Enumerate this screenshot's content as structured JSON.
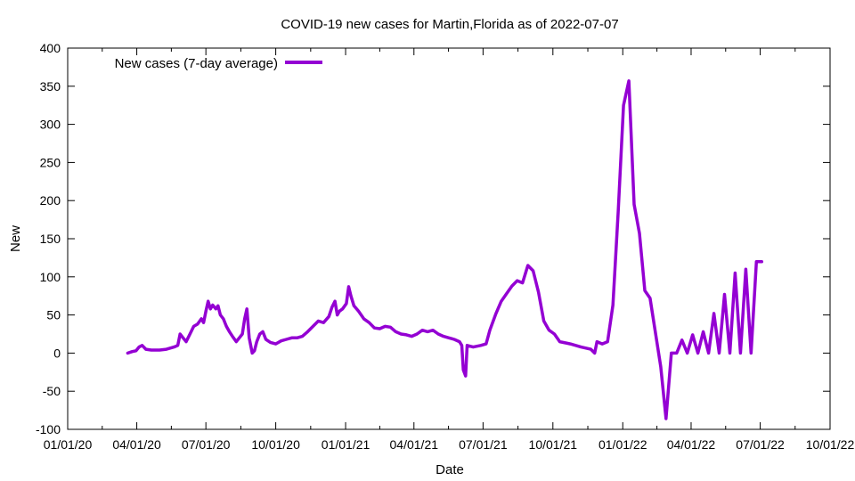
{
  "chart_data": {
    "type": "line",
    "title": "COVID-19 new cases for Martin,Florida as of 2022-07-07",
    "xlabel": "Date",
    "ylabel": "New",
    "ylim": [
      -100,
      400
    ],
    "yticks": [
      -100,
      -50,
      0,
      50,
      100,
      150,
      200,
      250,
      300,
      350,
      400
    ],
    "xlim": [
      "2020-01-01",
      "2022-10-01"
    ],
    "xticks": [
      {
        "date": "2020-01-01",
        "label": "01/01/20"
      },
      {
        "date": "2020-04-01",
        "label": "04/01/20"
      },
      {
        "date": "2020-07-01",
        "label": "07/01/20"
      },
      {
        "date": "2020-10-01",
        "label": "10/01/20"
      },
      {
        "date": "2021-01-01",
        "label": "01/01/21"
      },
      {
        "date": "2021-04-01",
        "label": "04/01/21"
      },
      {
        "date": "2021-07-01",
        "label": "07/01/21"
      },
      {
        "date": "2021-10-01",
        "label": "10/01/21"
      },
      {
        "date": "2022-01-01",
        "label": "01/01/22"
      },
      {
        "date": "2022-04-01",
        "label": "04/01/22"
      },
      {
        "date": "2022-07-01",
        "label": "07/01/22"
      },
      {
        "date": "2022-10-01",
        "label": "10/01/22"
      }
    ],
    "grid": false,
    "legend": "top-left",
    "series": [
      {
        "name": "New cases (7-day average)",
        "color": "#9400D3",
        "points": [
          [
            "2020-03-20",
            0
          ],
          [
            "2020-03-26",
            2
          ],
          [
            "2020-03-31",
            3
          ],
          [
            "2020-04-04",
            8
          ],
          [
            "2020-04-08",
            10
          ],
          [
            "2020-04-13",
            5
          ],
          [
            "2020-04-20",
            4
          ],
          [
            "2020-05-01",
            4
          ],
          [
            "2020-05-10",
            5
          ],
          [
            "2020-05-20",
            8
          ],
          [
            "2020-05-25",
            10
          ],
          [
            "2020-05-28",
            25
          ],
          [
            "2020-06-01",
            20
          ],
          [
            "2020-06-05",
            15
          ],
          [
            "2020-06-10",
            25
          ],
          [
            "2020-06-15",
            35
          ],
          [
            "2020-06-20",
            38
          ],
          [
            "2020-06-25",
            45
          ],
          [
            "2020-06-28",
            40
          ],
          [
            "2020-07-01",
            55
          ],
          [
            "2020-07-04",
            68
          ],
          [
            "2020-07-07",
            58
          ],
          [
            "2020-07-10",
            63
          ],
          [
            "2020-07-14",
            58
          ],
          [
            "2020-07-17",
            62
          ],
          [
            "2020-07-20",
            50
          ],
          [
            "2020-07-24",
            45
          ],
          [
            "2020-07-28",
            35
          ],
          [
            "2020-08-01",
            28
          ],
          [
            "2020-08-05",
            22
          ],
          [
            "2020-08-10",
            15
          ],
          [
            "2020-08-14",
            20
          ],
          [
            "2020-08-18",
            25
          ],
          [
            "2020-08-21",
            45
          ],
          [
            "2020-08-24",
            58
          ],
          [
            "2020-08-27",
            20
          ],
          [
            "2020-08-31",
            0
          ],
          [
            "2020-09-03",
            3
          ],
          [
            "2020-09-06",
            15
          ],
          [
            "2020-09-10",
            25
          ],
          [
            "2020-09-14",
            28
          ],
          [
            "2020-09-18",
            18
          ],
          [
            "2020-09-24",
            14
          ],
          [
            "2020-10-01",
            12
          ],
          [
            "2020-10-08",
            16
          ],
          [
            "2020-10-15",
            18
          ],
          [
            "2020-10-22",
            20
          ],
          [
            "2020-10-29",
            20
          ],
          [
            "2020-11-05",
            22
          ],
          [
            "2020-11-12",
            28
          ],
          [
            "2020-11-19",
            35
          ],
          [
            "2020-11-26",
            42
          ],
          [
            "2020-12-03",
            40
          ],
          [
            "2020-12-10",
            48
          ],
          [
            "2020-12-14",
            60
          ],
          [
            "2020-12-18",
            68
          ],
          [
            "2020-12-21",
            50
          ],
          [
            "2020-12-24",
            55
          ],
          [
            "2020-12-28",
            58
          ],
          [
            "2021-01-02",
            65
          ],
          [
            "2021-01-05",
            87
          ],
          [
            "2021-01-08",
            75
          ],
          [
            "2021-01-12",
            62
          ],
          [
            "2021-01-18",
            55
          ],
          [
            "2021-01-25",
            45
          ],
          [
            "2021-02-01",
            40
          ],
          [
            "2021-02-08",
            33
          ],
          [
            "2021-02-15",
            32
          ],
          [
            "2021-02-22",
            35
          ],
          [
            "2021-03-01",
            34
          ],
          [
            "2021-03-08",
            28
          ],
          [
            "2021-03-15",
            25
          ],
          [
            "2021-03-22",
            24
          ],
          [
            "2021-03-29",
            22
          ],
          [
            "2021-04-05",
            25
          ],
          [
            "2021-04-12",
            30
          ],
          [
            "2021-04-19",
            28
          ],
          [
            "2021-04-26",
            30
          ],
          [
            "2021-05-03",
            25
          ],
          [
            "2021-05-10",
            22
          ],
          [
            "2021-05-17",
            20
          ],
          [
            "2021-05-24",
            18
          ],
          [
            "2021-05-31",
            15
          ],
          [
            "2021-06-03",
            10
          ],
          [
            "2021-06-05",
            -22
          ],
          [
            "2021-06-08",
            -30
          ],
          [
            "2021-06-10",
            10
          ],
          [
            "2021-06-18",
            8
          ],
          [
            "2021-06-28",
            10
          ],
          [
            "2021-07-05",
            12
          ],
          [
            "2021-07-10",
            30
          ],
          [
            "2021-07-18",
            52
          ],
          [
            "2021-07-25",
            68
          ],
          [
            "2021-08-01",
            78
          ],
          [
            "2021-08-08",
            88
          ],
          [
            "2021-08-15",
            95
          ],
          [
            "2021-08-22",
            92
          ],
          [
            "2021-08-29",
            115
          ],
          [
            "2021-09-05",
            108
          ],
          [
            "2021-09-12",
            80
          ],
          [
            "2021-09-19",
            42
          ],
          [
            "2021-09-26",
            30
          ],
          [
            "2021-10-03",
            25
          ],
          [
            "2021-10-10",
            15
          ],
          [
            "2021-10-24",
            12
          ],
          [
            "2021-10-31",
            10
          ],
          [
            "2021-11-07",
            8
          ],
          [
            "2021-11-20",
            5
          ],
          [
            "2021-11-25",
            0
          ],
          [
            "2021-11-28",
            15
          ],
          [
            "2021-12-05",
            12
          ],
          [
            "2021-12-12",
            15
          ],
          [
            "2021-12-19",
            63
          ],
          [
            "2021-12-26",
            185
          ],
          [
            "2022-01-02",
            325
          ],
          [
            "2022-01-09",
            357
          ],
          [
            "2022-01-16",
            195
          ],
          [
            "2022-01-23",
            157
          ],
          [
            "2022-01-30",
            82
          ],
          [
            "2022-02-06",
            72
          ],
          [
            "2022-02-13",
            27
          ],
          [
            "2022-02-20",
            -18
          ],
          [
            "2022-02-27",
            -86
          ],
          [
            "2022-03-06",
            0
          ],
          [
            "2022-03-13",
            0
          ],
          [
            "2022-03-20",
            17
          ],
          [
            "2022-03-27",
            0
          ],
          [
            "2022-04-03",
            24
          ],
          [
            "2022-04-10",
            0
          ],
          [
            "2022-04-17",
            28
          ],
          [
            "2022-04-24",
            0
          ],
          [
            "2022-05-01",
            52
          ],
          [
            "2022-05-08",
            0
          ],
          [
            "2022-05-15",
            77
          ],
          [
            "2022-05-22",
            0
          ],
          [
            "2022-05-29",
            105
          ],
          [
            "2022-06-05",
            0
          ],
          [
            "2022-06-12",
            110
          ],
          [
            "2022-06-19",
            0
          ],
          [
            "2022-06-26",
            120
          ],
          [
            "2022-07-03",
            120
          ]
        ]
      }
    ]
  }
}
